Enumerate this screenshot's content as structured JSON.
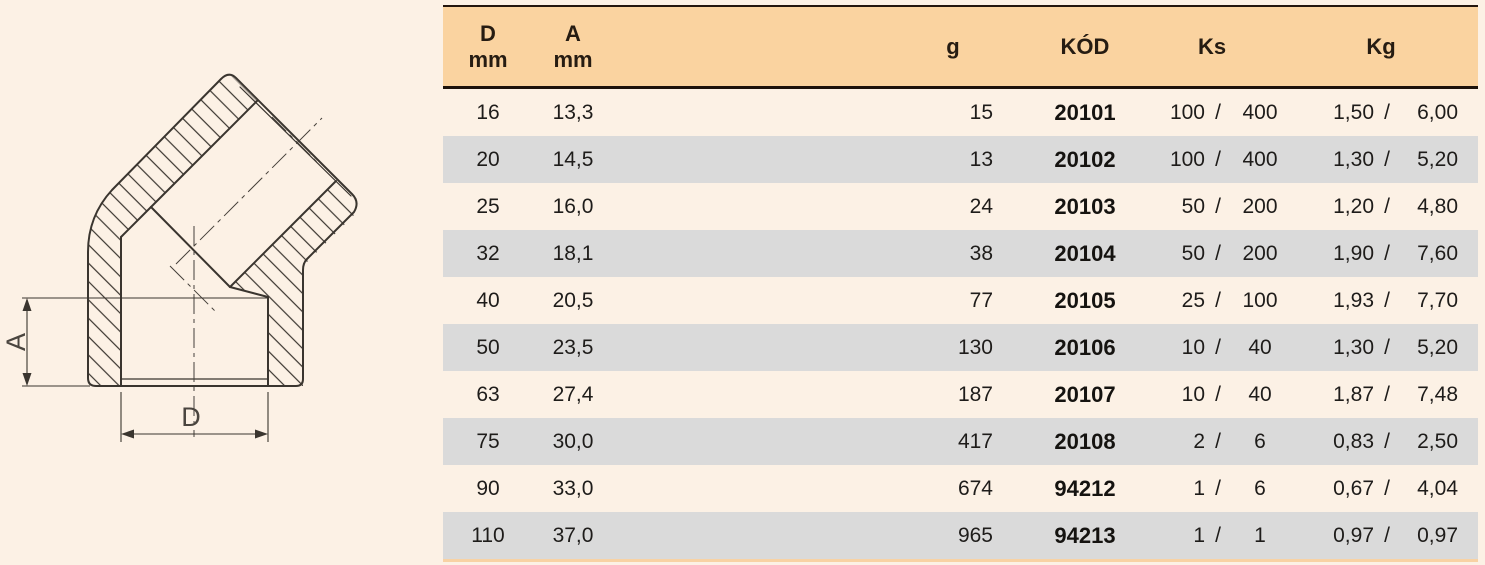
{
  "drawing": {
    "dim_a_label": "A",
    "dim_d_label": "D"
  },
  "table": {
    "slash": "/",
    "header": {
      "d": [
        "D",
        "mm"
      ],
      "a": [
        "A",
        "mm"
      ],
      "g": "g",
      "kod": "KÓD",
      "ks": "Ks",
      "kg": "Kg"
    },
    "rows": [
      {
        "d": "16",
        "a": "13,3",
        "g": "15",
        "kod": "20101",
        "ks1": "100",
        "ks2": "400",
        "kg1": "1,50",
        "kg2": "6,00"
      },
      {
        "d": "20",
        "a": "14,5",
        "g": "13",
        "kod": "20102",
        "ks1": "100",
        "ks2": "400",
        "kg1": "1,30",
        "kg2": "5,20"
      },
      {
        "d": "25",
        "a": "16,0",
        "g": "24",
        "kod": "20103",
        "ks1": "50",
        "ks2": "200",
        "kg1": "1,20",
        "kg2": "4,80"
      },
      {
        "d": "32",
        "a": "18,1",
        "g": "38",
        "kod": "20104",
        "ks1": "50",
        "ks2": "200",
        "kg1": "1,90",
        "kg2": "7,60"
      },
      {
        "d": "40",
        "a": "20,5",
        "g": "77",
        "kod": "20105",
        "ks1": "25",
        "ks2": "100",
        "kg1": "1,93",
        "kg2": "7,70"
      },
      {
        "d": "50",
        "a": "23,5",
        "g": "130",
        "kod": "20106",
        "ks1": "10",
        "ks2": "40",
        "kg1": "1,30",
        "kg2": "5,20"
      },
      {
        "d": "63",
        "a": "27,4",
        "g": "187",
        "kod": "20107",
        "ks1": "10",
        "ks2": "40",
        "kg1": "1,87",
        "kg2": "7,48"
      },
      {
        "d": "75",
        "a": "30,0",
        "g": "417",
        "kod": "20108",
        "ks1": "2",
        "ks2": "6",
        "kg1": "0,83",
        "kg2": "2,50"
      },
      {
        "d": "90",
        "a": "33,0",
        "g": "674",
        "kod": "94212",
        "ks1": "1",
        "ks2": "6",
        "kg1": "0,67",
        "kg2": "4,04"
      },
      {
        "d": "110",
        "a": "37,0",
        "g": "965",
        "kod": "94213",
        "ks1": "1",
        "ks2": "1",
        "kg1": "0,97",
        "kg2": "0,97"
      }
    ]
  },
  "colors": {
    "page_bg": "#FCF1E5",
    "header_bg": "#FAD3A0",
    "header_border": "#1C120B",
    "row_alt_bg": "#DADADA",
    "bottom_strip": "#F8D2A4",
    "line_color": "#3A352F"
  }
}
